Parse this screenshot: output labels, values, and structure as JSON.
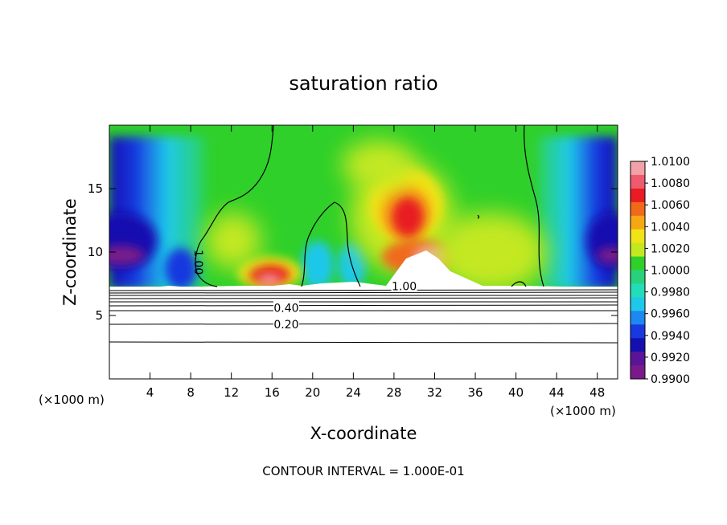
{
  "chart_data": {
    "type": "heatmap",
    "title": "saturation ratio",
    "xlabel": "X-coordinate",
    "ylabel": "Z-coordinate",
    "x_unit_left": "(×1000 m)",
    "x_unit_right": "(×1000 m)",
    "xlim": [
      0,
      50
    ],
    "ylim": [
      0,
      20
    ],
    "x_ticks": [
      "4",
      "8",
      "12",
      "16",
      "20",
      "24",
      "28",
      "32",
      "36",
      "40",
      "44",
      "48"
    ],
    "y_ticks": [
      "5",
      "10",
      "15"
    ],
    "footer": "CONTOUR INTERVAL = 1.000E-01",
    "colorbar": {
      "min": 0.99,
      "max": 1.01,
      "labels": [
        "1.0100",
        "1.0080",
        "1.0060",
        "1.0040",
        "1.0020",
        "1.0000",
        "0.9980",
        "0.9960",
        "0.9940",
        "0.9920",
        "0.9900"
      ],
      "colors": [
        "#F4A0A8",
        "#EE5A6E",
        "#E81C22",
        "#F06A1A",
        "#F5A814",
        "#F2E218",
        "#C4E820",
        "#2FD02A",
        "#28D27C",
        "#22DDB8",
        "#1FC8EA",
        "#1C88F0",
        "#1838E0",
        "#1410B0",
        "#5A1498",
        "#7A1A8A"
      ]
    },
    "contour_labels": [
      {
        "text": "1.00",
        "x": 8.8,
        "y": 9.2,
        "angle": 90
      },
      {
        "text": "1.00",
        "x": 29.0,
        "y": 7.3,
        "angle": 0
      },
      {
        "text": "0.40",
        "x": 17.4,
        "y": 5.6,
        "angle": 0
      },
      {
        "text": "0.20",
        "x": 17.4,
        "y": 4.3,
        "angle": 0
      }
    ],
    "ground_contours": [
      0.1,
      0.2,
      0.3,
      0.4,
      0.5,
      0.6,
      0.7,
      0.8,
      0.9
    ]
  }
}
